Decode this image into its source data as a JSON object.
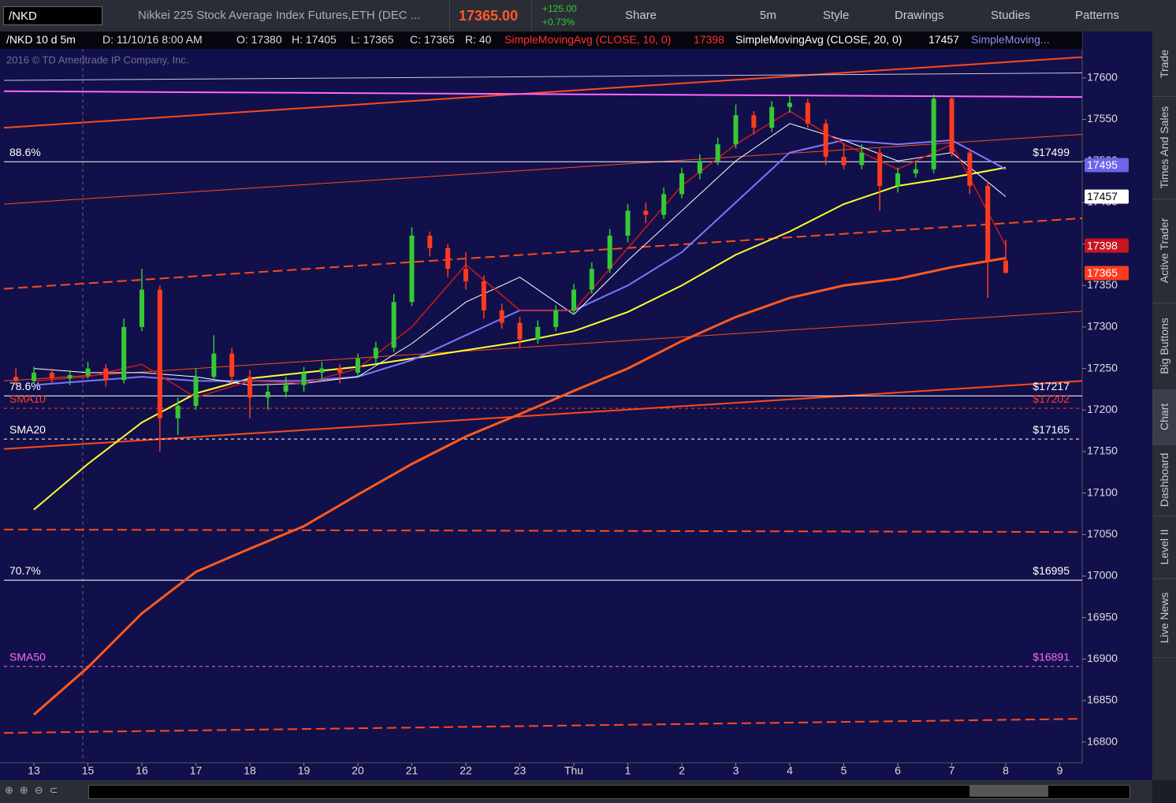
{
  "toolbar": {
    "symbol": "/NKD",
    "description": "Nikkei 225 Stock Average Index Futures,ETH (DEC ...",
    "price": "17365.00",
    "change": "+125.00",
    "change_pct": "+0.73%",
    "buttons": [
      "Share",
      "5m",
      "Style",
      "Drawings",
      "Studies",
      "Patterns"
    ]
  },
  "header": {
    "symbol_period": "/NKD 10 d 5m",
    "date": "D: 11/10/16 8:00 AM",
    "open": "O: 17380",
    "high": "H: 17405",
    "low": "L: 17365",
    "close": "C: 17365",
    "range": "R: 40",
    "studies": [
      {
        "label": "SimpleMovingAvg (CLOSE, 10, 0)",
        "value": "17398",
        "color": "#ff3030"
      },
      {
        "label": "SimpleMovingAvg (CLOSE, 20, 0)",
        "value": "17457",
        "color": "#ffffff"
      },
      {
        "label": "SimpleMoving...",
        "color": "#8c8cff"
      }
    ]
  },
  "copyright": "2016 © TD Ameritrade IP Company, Inc.",
  "side_tabs": [
    "Trade",
    "Times And Sales",
    "Active Trader",
    "Big Buttons",
    "Chart",
    "Dashboard",
    "Level II",
    "Live News"
  ],
  "active_tab": "Chart",
  "chart_data": {
    "type": "candlestick",
    "categories": [
      "13",
      "15",
      "16",
      "17",
      "18",
      "19",
      "20",
      "21",
      "22",
      "23",
      "Thu",
      "1",
      "2",
      "3",
      "4",
      "5",
      "6",
      "7",
      "8",
      "9"
    ],
    "ylim": [
      16775,
      17635
    ],
    "yticks": [
      16800,
      16850,
      16900,
      16950,
      17000,
      17050,
      17100,
      17150,
      17200,
      17250,
      17300,
      17350,
      17400,
      17450,
      17500,
      17550,
      17600
    ],
    "up_color": "#35c935",
    "down_color": "#ff3b1f",
    "candles": [
      [
        17240,
        17250,
        17230,
        17235
      ],
      [
        17235,
        17252,
        17232,
        17245
      ],
      [
        17245,
        17250,
        17232,
        17238
      ],
      [
        17238,
        17248,
        17230,
        17242
      ],
      [
        17242,
        17258,
        17238,
        17250
      ],
      [
        17250,
        17255,
        17228,
        17236
      ],
      [
        17236,
        17310,
        17232,
        17300
      ],
      [
        17300,
        17370,
        17295,
        17345
      ],
      [
        17345,
        17350,
        17150,
        17190
      ],
      [
        17190,
        17215,
        17170,
        17205
      ],
      [
        17205,
        17250,
        17200,
        17240
      ],
      [
        17240,
        17290,
        17235,
        17268
      ],
      [
        17268,
        17275,
        17232,
        17240
      ],
      [
        17240,
        17248,
        17190,
        17215
      ],
      [
        17215,
        17232,
        17200,
        17222
      ],
      [
        17222,
        17240,
        17215,
        17230
      ],
      [
        17230,
        17252,
        17222,
        17245
      ],
      [
        17245,
        17258,
        17238,
        17250
      ],
      [
        17250,
        17255,
        17232,
        17245
      ],
      [
        17245,
        17268,
        17240,
        17262
      ],
      [
        17262,
        17282,
        17255,
        17275
      ],
      [
        17275,
        17340,
        17270,
        17330
      ],
      [
        17330,
        17420,
        17325,
        17410
      ],
      [
        17410,
        17415,
        17385,
        17395
      ],
      [
        17395,
        17400,
        17360,
        17370
      ],
      [
        17370,
        17390,
        17345,
        17355
      ],
      [
        17355,
        17362,
        17310,
        17320
      ],
      [
        17320,
        17328,
        17298,
        17305
      ],
      [
        17305,
        17312,
        17275,
        17285
      ],
      [
        17285,
        17308,
        17280,
        17300
      ],
      [
        17300,
        17326,
        17295,
        17320
      ],
      [
        17320,
        17352,
        17315,
        17345
      ],
      [
        17345,
        17378,
        17340,
        17370
      ],
      [
        17370,
        17418,
        17365,
        17410
      ],
      [
        17410,
        17448,
        17402,
        17440
      ],
      [
        17440,
        17450,
        17425,
        17435
      ],
      [
        17435,
        17468,
        17430,
        17460
      ],
      [
        17460,
        17492,
        17455,
        17485
      ],
      [
        17485,
        17508,
        17478,
        17500
      ],
      [
        17500,
        17528,
        17495,
        17520
      ],
      [
        17520,
        17568,
        17515,
        17555
      ],
      [
        17555,
        17560,
        17532,
        17540
      ],
      [
        17540,
        17572,
        17535,
        17565
      ],
      [
        17565,
        17578,
        17558,
        17570
      ],
      [
        17570,
        17575,
        17540,
        17545
      ],
      [
        17545,
        17550,
        17495,
        17505
      ],
      [
        17505,
        17522,
        17490,
        17495
      ],
      [
        17495,
        17520,
        17490,
        17510
      ],
      [
        17510,
        17515,
        17440,
        17470
      ],
      [
        17470,
        17492,
        17462,
        17485
      ],
      [
        17485,
        17498,
        17480,
        17490
      ],
      [
        17490,
        17580,
        17485,
        17575
      ],
      [
        17575,
        17578,
        17505,
        17510
      ],
      [
        17510,
        17515,
        17460,
        17470
      ],
      [
        17470,
        17475,
        17335,
        17380
      ],
      [
        17380,
        17405,
        17365,
        17365
      ]
    ],
    "lines": [
      {
        "color": "#ff5a1e",
        "width": 3,
        "values": [
          16833,
          16890,
          16955,
          17005,
          17033,
          17060,
          17098,
          17135,
          17168,
          17195,
          17223,
          17250,
          17283,
          17312,
          17335,
          17350,
          17358,
          17372,
          17383
        ]
      },
      {
        "color": "#ffff33",
        "width": 2,
        "values": [
          17080,
          17135,
          17185,
          17220,
          17238,
          17245,
          17252,
          17262,
          17272,
          17282,
          17295,
          17318,
          17350,
          17387,
          17415,
          17448,
          17470,
          17480,
          17492
        ]
      },
      {
        "color": "#7a78ff",
        "width": 2,
        "values": [
          17230,
          17235,
          17240,
          17235,
          17235,
          17235,
          17240,
          17260,
          17290,
          17320,
          17320,
          17350,
          17390,
          17450,
          17510,
          17525,
          17520,
          17525,
          17490
        ]
      },
      {
        "color": "#ffffff",
        "width": 1,
        "values": [
          17250,
          17245,
          17245,
          17240,
          17230,
          17232,
          17240,
          17280,
          17330,
          17360,
          17315,
          17380,
          17440,
          17500,
          17545,
          17525,
          17500,
          17510,
          17457
        ]
      },
      {
        "color": "#d01818",
        "width": 1.5,
        "values": [
          17235,
          17240,
          17255,
          17215,
          17235,
          17232,
          17250,
          17300,
          17375,
          17320,
          17320,
          17395,
          17470,
          17520,
          17560,
          17520,
          17490,
          17520,
          17398
        ]
      }
    ],
    "trendlines": [
      {
        "color": "#ff4a1a",
        "width": 2,
        "dashed": false,
        "start": 17540,
        "end": 17625
      },
      {
        "color": "#ff4a1a",
        "width": 1,
        "dashed": false,
        "start": 17448,
        "end": 17532
      },
      {
        "color": "#ff4a1a",
        "width": 2,
        "dashed": true,
        "start": 17346,
        "end": 17431
      },
      {
        "color": "#ff4a1a",
        "width": 1,
        "dashed": false,
        "start": 17235,
        "end": 17319
      },
      {
        "color": "#ff4a1a",
        "width": 2,
        "dashed": false,
        "start": 17153,
        "end": 17235
      },
      {
        "color": "#ff4a1a",
        "width": 2,
        "dashed": true,
        "start": 17056,
        "end": 17053
      },
      {
        "color": "#ff4a1a",
        "width": 2,
        "dashed": true,
        "start": 16811,
        "end": 16828
      },
      {
        "color": "#ff66ff",
        "width": 2,
        "dashed": false,
        "start": 17584,
        "end": 17577
      },
      {
        "color": "#c8c8d8",
        "width": 1,
        "dashed": false,
        "start": 17597,
        "end": 17606
      }
    ],
    "levels": [
      {
        "label": "88.6%",
        "value": 17499,
        "value_label": "$17499",
        "color": "#ffffff",
        "dashed": false
      },
      {
        "label": "78.6%",
        "value": 17217,
        "value_label": "$17217",
        "color": "#ffffff",
        "dashed": false
      },
      {
        "label": "SMA10",
        "value": 17202,
        "value_label": "$17202",
        "color": "#ff3b1f",
        "dashed": true
      },
      {
        "label": "SMA20",
        "value": 17165,
        "value_label": "$17165",
        "color": "#ffffff",
        "dashed": true
      },
      {
        "label": "70.7%",
        "value": 16995,
        "value_label": "$16995",
        "color": "#ffffff",
        "dashed": false
      },
      {
        "label": "SMA50",
        "value": 16891,
        "value_label": "$16891",
        "color": "#ff66ff",
        "dashed": true
      }
    ],
    "price_tags": [
      {
        "value": 17495,
        "color": "#6d64e8",
        "text_color": "#ffffff"
      },
      {
        "value": 17457,
        "color": "#ffffff",
        "text_color": "#000000"
      },
      {
        "value": 17398,
        "color": "#c8141e",
        "text_color": "#ffffff"
      },
      {
        "value": 17365,
        "color": "#ff3b1f",
        "text_color": "#ffffff"
      }
    ]
  }
}
